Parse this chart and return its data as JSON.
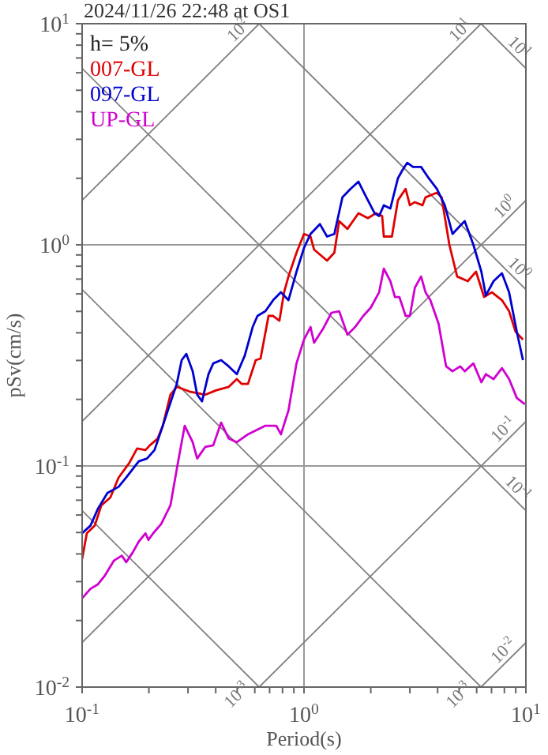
{
  "chart_data": {
    "type": "line",
    "title": "2024/11/26 22:48 at OS1",
    "xlabel": "Period(s)",
    "ylabel": "pSv(cm/s)",
    "log": "xy",
    "grid": true,
    "legend": "top left",
    "xlim": [
      0.1,
      10
    ],
    "ylim": [
      0.01,
      10
    ],
    "xticks": [
      {
        "value": 0.1,
        "label": "10$^{-1}$"
      },
      {
        "value": 0.2,
        "label": null
      },
      {
        "value": 0.3,
        "label": null
      },
      {
        "value": 0.4,
        "label": null
      },
      {
        "value": 0.5,
        "label": null
      },
      {
        "value": 0.6,
        "label": null
      },
      {
        "value": 0.7,
        "label": null
      },
      {
        "value": 0.8,
        "label": null
      },
      {
        "value": 0.9,
        "label": null
      },
      {
        "value": 1,
        "label": "10$^{0}$"
      },
      {
        "value": 2,
        "label": null
      },
      {
        "value": 3,
        "label": null
      },
      {
        "value": 4,
        "label": null
      },
      {
        "value": 5,
        "label": null
      },
      {
        "value": 6,
        "label": null
      },
      {
        "value": 7,
        "label": null
      },
      {
        "value": 8,
        "label": null
      },
      {
        "value": 9,
        "label": null
      },
      {
        "value": 10,
        "label": "10$^{1}$"
      }
    ],
    "yticks": [
      {
        "value": 0.01,
        "label": "10$^{-2}$"
      },
      {
        "value": 0.02,
        "label": null
      },
      {
        "value": 0.03,
        "label": null
      },
      {
        "value": 0.04,
        "label": null
      },
      {
        "value": 0.05,
        "label": null
      },
      {
        "value": 0.06,
        "label": null
      },
      {
        "value": 0.07,
        "label": null
      },
      {
        "value": 0.08,
        "label": null
      },
      {
        "value": 0.09,
        "label": null
      },
      {
        "value": 0.1,
        "label": "10$^{-1}$"
      },
      {
        "value": 0.2,
        "label": null
      },
      {
        "value": 0.3,
        "label": null
      },
      {
        "value": 0.4,
        "label": null
      },
      {
        "value": 0.5,
        "label": null
      },
      {
        "value": 0.6,
        "label": null
      },
      {
        "value": 0.7,
        "label": null
      },
      {
        "value": 0.8,
        "label": null
      },
      {
        "value": 0.9,
        "label": null
      },
      {
        "value": 1,
        "label": "10$^{0}$"
      },
      {
        "value": 2,
        "label": null
      },
      {
        "value": 3,
        "label": null
      },
      {
        "value": 4,
        "label": null
      },
      {
        "value": 5,
        "label": null
      },
      {
        "value": 6,
        "label": null
      },
      {
        "value": 7,
        "label": null
      },
      {
        "value": 8,
        "label": null
      },
      {
        "value": 9,
        "label": null
      },
      {
        "value": 10,
        "label": "10$^{1}$"
      }
    ],
    "annotations": [
      "h= 5%",
      {
        "text": "10$^{2}$",
        "x": 0.628,
        "y": 10
      },
      {
        "text": "10$^{1}$",
        "x": 6.28,
        "y": 10
      },
      {
        "text": "10$^{1}$",
        "x": 10,
        "y": 6.28
      },
      {
        "text": "10$^{0}$",
        "x": 10,
        "y": 1.59
      },
      {
        "text": "10$^{0}$",
        "x": 10,
        "y": 0.628
      },
      {
        "text": "10$^{-1}$",
        "x": 10,
        "y": 0.159
      },
      {
        "text": "10$^{-1}$",
        "x": 10,
        "y": 0.0628
      },
      {
        "text": "10$^{-3}$",
        "x": 0.628,
        "y": 0.01
      },
      {
        "text": "10$^{-3}$",
        "x": 6.28,
        "y": 0.01
      },
      {
        "text": "10$^{-2}$",
        "x": 10,
        "y": 0.0159
      }
    ],
    "series": [
      {
        "type": "line",
        "color": "#808080",
        "x": [
          6.28,
          10
        ],
        "values": [
          0.01,
          0.0159
        ]
      },
      {
        "type": "line",
        "color": "#808080",
        "x": [
          0.628,
          10
        ],
        "values": [
          0.01,
          0.159
        ]
      },
      {
        "type": "line",
        "color": "#808080",
        "x": [
          0.1,
          10
        ],
        "values": [
          0.0159,
          1.59
        ]
      },
      {
        "type": "line",
        "color": "#808080",
        "x": [
          0.1,
          6.28
        ],
        "values": [
          0.159,
          10
        ]
      },
      {
        "type": "line",
        "color": "#808080",
        "x": [
          0.1,
          0.628
        ],
        "values": [
          1.59,
          10
        ]
      },
      {
        "type": "line",
        "color": "#808080",
        "x": [
          0.1,
          0.628
        ],
        "values": [
          0.0628,
          0.01
        ]
      },
      {
        "type": "line",
        "color": "#808080",
        "x": [
          0.1,
          6.28
        ],
        "values": [
          0.628,
          0.01
        ]
      },
      {
        "type": "line",
        "color": "#808080",
        "x": [
          0.1,
          10
        ],
        "values": [
          6.28,
          0.0628
        ]
      },
      {
        "type": "line",
        "color": "#808080",
        "x": [
          0.628,
          10
        ],
        "values": [
          10,
          0.628
        ]
      },
      {
        "type": "line",
        "color": "#808080",
        "x": [
          6.28,
          10
        ],
        "values": [
          10,
          6.28
        ]
      },
      {
        "name": "007-GL",
        "color": "#e00000",
        "x": [
          0.1,
          0.105,
          0.114,
          0.122,
          0.134,
          0.146,
          0.163,
          0.177,
          0.193,
          0.202,
          0.219,
          0.231,
          0.25,
          0.267,
          0.305,
          0.359,
          0.403,
          0.458,
          0.498,
          0.523,
          0.559,
          0.606,
          0.637,
          0.692,
          0.726,
          0.775,
          0.813,
          0.851,
          0.925,
          1.0,
          1.07,
          1.11,
          1.27,
          1.37,
          1.44,
          1.57,
          1.76,
          1.94,
          2.11,
          2.25,
          2.29,
          2.49,
          2.65,
          2.87,
          3.0,
          3.16,
          3.42,
          3.53,
          3.97,
          4.17,
          4.52,
          4.9,
          5.47,
          5.96,
          6.48,
          7.03,
          7.8,
          8.4,
          8.98,
          9.7
        ],
        "values": [
          0.038,
          0.0496,
          0.0537,
          0.0663,
          0.072,
          0.0886,
          0.103,
          0.12,
          0.118,
          0.124,
          0.133,
          0.152,
          0.21,
          0.228,
          0.217,
          0.21,
          0.22,
          0.228,
          0.247,
          0.235,
          0.235,
          0.301,
          0.306,
          0.477,
          0.477,
          0.454,
          0.61,
          0.719,
          0.921,
          1.12,
          1.09,
          0.952,
          0.848,
          0.921,
          1.28,
          1.18,
          1.39,
          1.32,
          1.39,
          1.35,
          1.09,
          1.09,
          1.59,
          1.79,
          1.51,
          1.56,
          1.51,
          1.64,
          1.72,
          1.64,
          1.0,
          0.719,
          0.685,
          0.756,
          0.581,
          0.61,
          0.562,
          0.501,
          0.405,
          0.373
        ]
      },
      {
        "name": "097-GL",
        "color": "#0000d0",
        "x": [
          0.1,
          0.109,
          0.118,
          0.13,
          0.146,
          0.158,
          0.18,
          0.196,
          0.212,
          0.231,
          0.246,
          0.267,
          0.281,
          0.295,
          0.315,
          0.33,
          0.347,
          0.371,
          0.39,
          0.423,
          0.458,
          0.498,
          0.541,
          0.587,
          0.617,
          0.67,
          0.726,
          0.787,
          0.851,
          0.925,
          1.0,
          1.07,
          1.18,
          1.27,
          1.37,
          1.49,
          1.62,
          1.76,
          1.91,
          2.08,
          2.18,
          2.29,
          2.45,
          2.65,
          2.78,
          2.92,
          3.1,
          3.37,
          3.65,
          3.97,
          4.31,
          4.67,
          5.06,
          5.3,
          5.8,
          6.3,
          6.6,
          7.15,
          7.8,
          8.4,
          9.1,
          9.7
        ],
        "values": [
          0.0496,
          0.0537,
          0.0642,
          0.0755,
          0.0805,
          0.0886,
          0.105,
          0.108,
          0.118,
          0.152,
          0.184,
          0.235,
          0.301,
          0.321,
          0.268,
          0.21,
          0.196,
          0.26,
          0.291,
          0.301,
          0.282,
          0.26,
          0.316,
          0.425,
          0.477,
          0.501,
          0.562,
          0.61,
          0.562,
          0.756,
          0.968,
          1.12,
          1.24,
          1.09,
          1.12,
          1.64,
          1.79,
          1.93,
          1.64,
          1.39,
          1.35,
          1.51,
          1.46,
          2.0,
          2.18,
          2.35,
          2.25,
          2.25,
          2.0,
          1.79,
          1.51,
          1.12,
          1.22,
          1.28,
          1.0,
          0.756,
          0.59,
          0.685,
          0.744,
          0.61,
          0.405,
          0.301
        ]
      },
      {
        "name": "UP-GL",
        "color": "#d000d0",
        "x": [
          0.1,
          0.109,
          0.118,
          0.126,
          0.139,
          0.151,
          0.158,
          0.169,
          0.18,
          0.193,
          0.199,
          0.209,
          0.227,
          0.25,
          0.27,
          0.29,
          0.315,
          0.33,
          0.359,
          0.39,
          0.423,
          0.458,
          0.498,
          0.559,
          0.617,
          0.67,
          0.75,
          0.787,
          0.851,
          0.925,
          1.0,
          1.07,
          1.11,
          1.22,
          1.33,
          1.44,
          1.57,
          1.7,
          1.85,
          2.0,
          2.18,
          2.29,
          2.45,
          2.57,
          2.69,
          2.87,
          3.0,
          3.16,
          3.37,
          3.53,
          3.71,
          4.04,
          4.37,
          4.67,
          5.06,
          5.3,
          5.8,
          6.3,
          6.6,
          7.15,
          7.8,
          8.4,
          9.1,
          9.9
        ],
        "values": [
          0.0252,
          0.0278,
          0.0292,
          0.0317,
          0.0373,
          0.0393,
          0.0367,
          0.0406,
          0.0455,
          0.0496,
          0.0463,
          0.0496,
          0.0546,
          0.0663,
          0.103,
          0.152,
          0.128,
          0.108,
          0.122,
          0.124,
          0.157,
          0.133,
          0.128,
          0.139,
          0.146,
          0.152,
          0.152,
          0.139,
          0.178,
          0.291,
          0.373,
          0.425,
          0.361,
          0.418,
          0.493,
          0.501,
          0.392,
          0.425,
          0.477,
          0.52,
          0.61,
          0.781,
          0.685,
          0.581,
          0.581,
          0.477,
          0.477,
          0.64,
          0.719,
          0.61,
          0.562,
          0.44,
          0.282,
          0.268,
          0.282,
          0.268,
          0.291,
          0.239,
          0.26,
          0.247,
          0.277,
          0.247,
          0.203,
          0.19
        ]
      }
    ]
  }
}
